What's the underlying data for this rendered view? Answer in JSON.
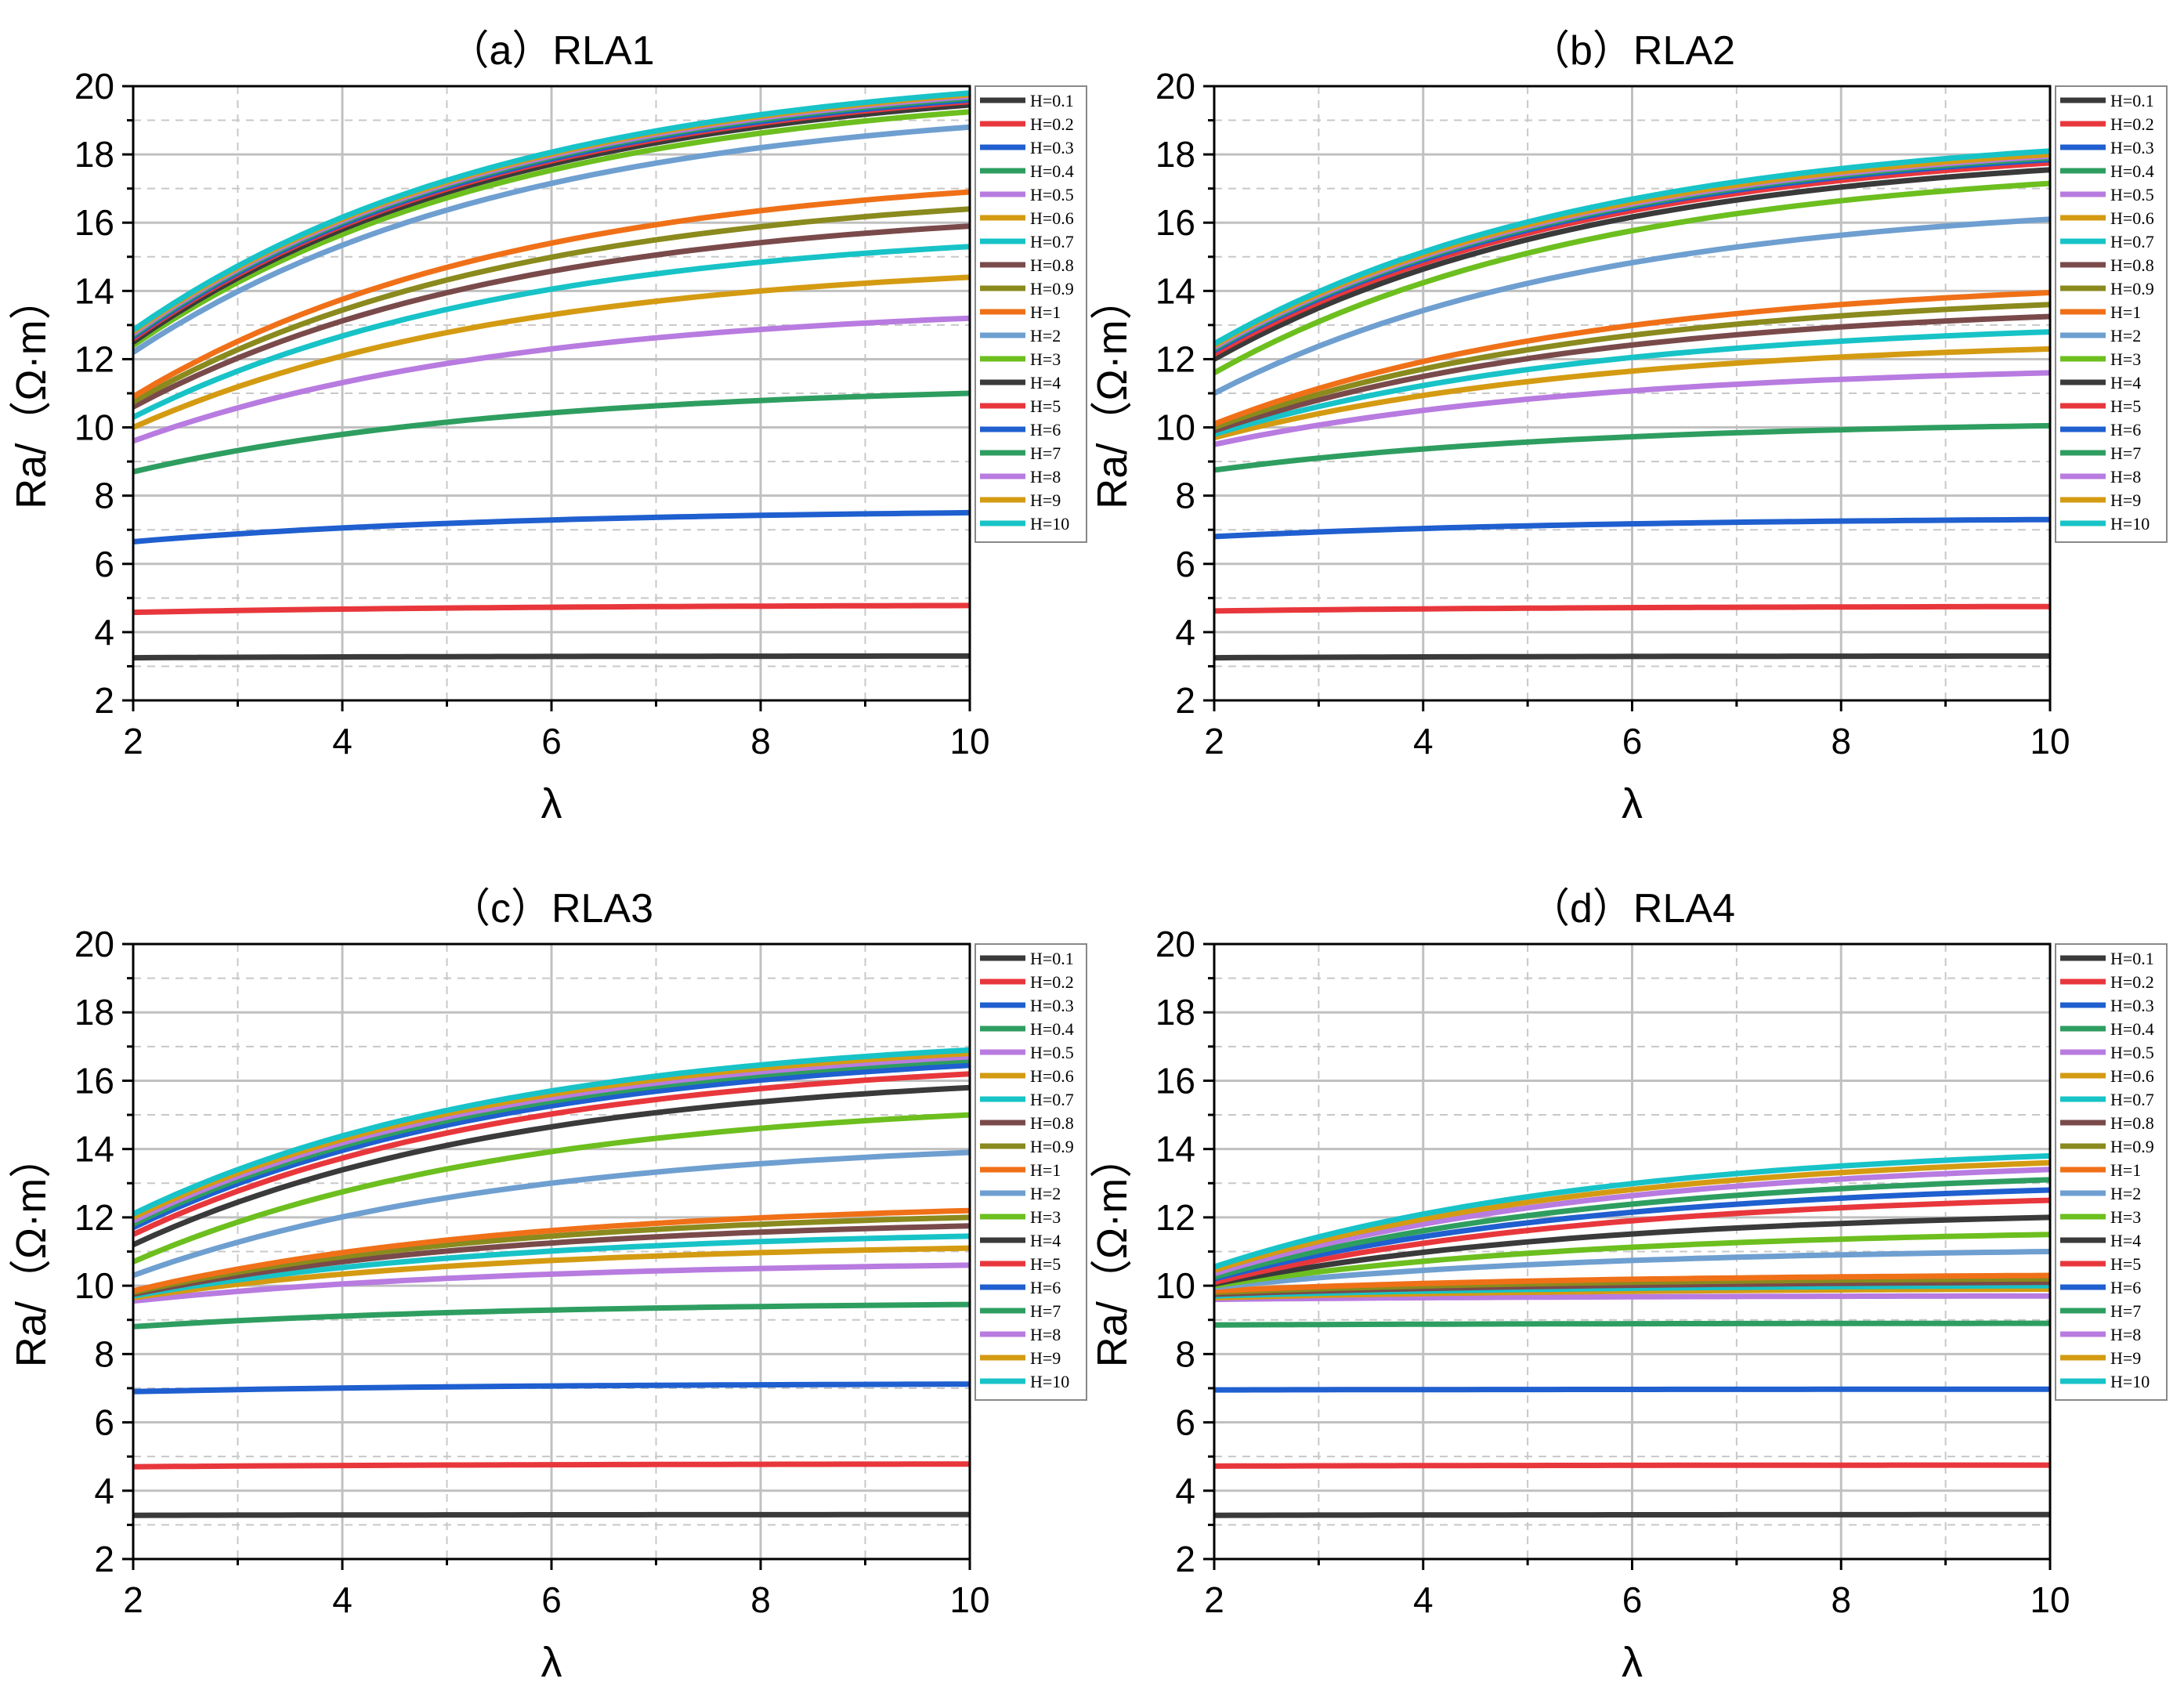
{
  "figure": {
    "y_axis_label": "Ra/（Ω·m）",
    "x_axis_label": "λ",
    "legend_labels": [
      "H=0.1",
      "H=0.2",
      "H=0.3",
      "H=0.4",
      "H=0.5",
      "H=0.6",
      "H=0.7",
      "H=0.8",
      "H=0.9",
      "H=1",
      "H=2",
      "H=3",
      "H=4",
      "H=5",
      "H=6",
      "H=7",
      "H=8",
      "H=9",
      "H=10"
    ],
    "series_colors": [
      "#3a3a3a",
      "#e8373c",
      "#1f5fcf",
      "#2e9e60",
      "#b87be0",
      "#d49b12",
      "#17c3c7",
      "#7a4a4a",
      "#8a8a1e",
      "#f07018",
      "#6e9fd0",
      "#6cbf1e",
      "#3a3a3a",
      "#e8373c",
      "#1f5fcf",
      "#2e9e60",
      "#b87be0",
      "#d49b12",
      "#17c3c7"
    ],
    "x_ticks": [
      "2",
      "4",
      "6",
      "8",
      "10"
    ],
    "y_ticks": [
      "2",
      "4",
      "6",
      "8",
      "10",
      "12",
      "14",
      "16",
      "18",
      "20"
    ]
  },
  "chart_data": [
    {
      "type": "line",
      "title": "（a）RLA1",
      "xlabel": "λ",
      "ylabel": "Ra/（Ω·m）",
      "xlim": [
        2,
        10
      ],
      "ylim": [
        2,
        20
      ],
      "grid": true,
      "legend_position": "right",
      "x": [
        2,
        10
      ],
      "series": [
        {
          "name": "H=0.1",
          "start": 3.25,
          "end": 3.3
        },
        {
          "name": "H=0.2",
          "start": 4.58,
          "end": 4.78
        },
        {
          "name": "H=0.3",
          "start": 6.65,
          "end": 7.5
        },
        {
          "name": "H=0.4",
          "start": 8.7,
          "end": 11.0
        },
        {
          "name": "H=0.5",
          "start": 9.6,
          "end": 13.2
        },
        {
          "name": "H=0.6",
          "start": 10.0,
          "end": 14.4
        },
        {
          "name": "H=0.7",
          "start": 10.3,
          "end": 15.3
        },
        {
          "name": "H=0.8",
          "start": 10.6,
          "end": 15.9
        },
        {
          "name": "H=0.9",
          "start": 10.75,
          "end": 16.4
        },
        {
          "name": "H=1",
          "start": 10.9,
          "end": 16.9
        },
        {
          "name": "H=2",
          "start": 12.2,
          "end": 18.8
        },
        {
          "name": "H=3",
          "start": 12.4,
          "end": 19.25
        },
        {
          "name": "H=4",
          "start": 12.5,
          "end": 19.45
        },
        {
          "name": "H=5",
          "start": 12.6,
          "end": 19.55
        },
        {
          "name": "H=6",
          "start": 12.65,
          "end": 19.6
        },
        {
          "name": "H=7",
          "start": 12.7,
          "end": 19.65
        },
        {
          "name": "H=8",
          "start": 12.75,
          "end": 19.7
        },
        {
          "name": "H=9",
          "start": 12.8,
          "end": 19.75
        },
        {
          "name": "H=10",
          "start": 12.85,
          "end": 19.8
        }
      ]
    },
    {
      "type": "line",
      "title": "（b）RLA2",
      "xlabel": "λ",
      "ylabel": "Ra/（Ω·m）",
      "xlim": [
        2,
        10
      ],
      "ylim": [
        2,
        20
      ],
      "grid": true,
      "legend_position": "right",
      "x": [
        2,
        10
      ],
      "series": [
        {
          "name": "H=0.1",
          "start": 3.25,
          "end": 3.3
        },
        {
          "name": "H=0.2",
          "start": 4.62,
          "end": 4.75
        },
        {
          "name": "H=0.3",
          "start": 6.8,
          "end": 7.3
        },
        {
          "name": "H=0.4",
          "start": 8.75,
          "end": 10.05
        },
        {
          "name": "H=0.5",
          "start": 9.5,
          "end": 11.6
        },
        {
          "name": "H=0.6",
          "start": 9.7,
          "end": 12.3
        },
        {
          "name": "H=0.7",
          "start": 9.8,
          "end": 12.8
        },
        {
          "name": "H=0.8",
          "start": 9.9,
          "end": 13.25
        },
        {
          "name": "H=0.9",
          "start": 10.0,
          "end": 13.6
        },
        {
          "name": "H=1",
          "start": 10.1,
          "end": 13.95
        },
        {
          "name": "H=2",
          "start": 11.0,
          "end": 16.1
        },
        {
          "name": "H=3",
          "start": 11.6,
          "end": 17.15
        },
        {
          "name": "H=4",
          "start": 12.0,
          "end": 17.55
        },
        {
          "name": "H=5",
          "start": 12.15,
          "end": 17.75
        },
        {
          "name": "H=6",
          "start": 12.25,
          "end": 17.85
        },
        {
          "name": "H=7",
          "start": 12.3,
          "end": 17.9
        },
        {
          "name": "H=8",
          "start": 12.35,
          "end": 17.95
        },
        {
          "name": "H=9",
          "start": 12.4,
          "end": 18.0
        },
        {
          "name": "H=10",
          "start": 12.45,
          "end": 18.1
        }
      ]
    },
    {
      "type": "line",
      "title": "（c）RLA3",
      "xlabel": "λ",
      "ylabel": "Ra/（Ω·m）",
      "xlim": [
        2,
        10
      ],
      "ylim": [
        2,
        20
      ],
      "grid": true,
      "legend_position": "right",
      "x": [
        2,
        10
      ],
      "series": [
        {
          "name": "H=0.1",
          "start": 3.28,
          "end": 3.3
        },
        {
          "name": "H=0.2",
          "start": 4.7,
          "end": 4.78
        },
        {
          "name": "H=0.3",
          "start": 6.9,
          "end": 7.12
        },
        {
          "name": "H=0.4",
          "start": 8.8,
          "end": 9.45
        },
        {
          "name": "H=0.5",
          "start": 9.55,
          "end": 10.6
        },
        {
          "name": "H=0.6",
          "start": 9.65,
          "end": 11.1
        },
        {
          "name": "H=0.7",
          "start": 9.7,
          "end": 11.45
        },
        {
          "name": "H=0.8",
          "start": 9.75,
          "end": 11.75
        },
        {
          "name": "H=0.9",
          "start": 9.8,
          "end": 12.0
        },
        {
          "name": "H=1",
          "start": 9.85,
          "end": 12.2
        },
        {
          "name": "H=2",
          "start": 10.3,
          "end": 13.9
        },
        {
          "name": "H=3",
          "start": 10.7,
          "end": 15.0
        },
        {
          "name": "H=4",
          "start": 11.2,
          "end": 15.8
        },
        {
          "name": "H=5",
          "start": 11.5,
          "end": 16.2
        },
        {
          "name": "H=6",
          "start": 11.7,
          "end": 16.45
        },
        {
          "name": "H=7",
          "start": 11.8,
          "end": 16.6
        },
        {
          "name": "H=8",
          "start": 11.9,
          "end": 16.7
        },
        {
          "name": "H=9",
          "start": 12.0,
          "end": 16.8
        },
        {
          "name": "H=10",
          "start": 12.1,
          "end": 16.9
        }
      ]
    },
    {
      "type": "line",
      "title": "（d）RLA4",
      "xlabel": "λ",
      "ylabel": "Ra/（Ω·m）",
      "xlim": [
        2,
        10
      ],
      "ylim": [
        2,
        20
      ],
      "grid": true,
      "legend_position": "right",
      "x": [
        2,
        10
      ],
      "series": [
        {
          "name": "H=0.1",
          "start": 3.28,
          "end": 3.3
        },
        {
          "name": "H=0.2",
          "start": 4.72,
          "end": 4.75
        },
        {
          "name": "H=0.3",
          "start": 6.95,
          "end": 6.97
        },
        {
          "name": "H=0.4",
          "start": 8.85,
          "end": 8.9
        },
        {
          "name": "H=0.5",
          "start": 9.6,
          "end": 9.7
        },
        {
          "name": "H=0.6",
          "start": 9.65,
          "end": 9.9
        },
        {
          "name": "H=0.7",
          "start": 9.7,
          "end": 10.0
        },
        {
          "name": "H=0.8",
          "start": 9.75,
          "end": 10.1
        },
        {
          "name": "H=0.9",
          "start": 9.8,
          "end": 10.2
        },
        {
          "name": "H=1",
          "start": 9.85,
          "end": 10.3
        },
        {
          "name": "H=2",
          "start": 9.95,
          "end": 11.0
        },
        {
          "name": "H=3",
          "start": 10.0,
          "end": 11.5
        },
        {
          "name": "H=4",
          "start": 10.05,
          "end": 12.0
        },
        {
          "name": "H=5",
          "start": 10.1,
          "end": 12.5
        },
        {
          "name": "H=6",
          "start": 10.2,
          "end": 12.8
        },
        {
          "name": "H=7",
          "start": 10.25,
          "end": 13.1
        },
        {
          "name": "H=8",
          "start": 10.35,
          "end": 13.4
        },
        {
          "name": "H=9",
          "start": 10.45,
          "end": 13.6
        },
        {
          "name": "H=10",
          "start": 10.55,
          "end": 13.8
        }
      ]
    }
  ]
}
